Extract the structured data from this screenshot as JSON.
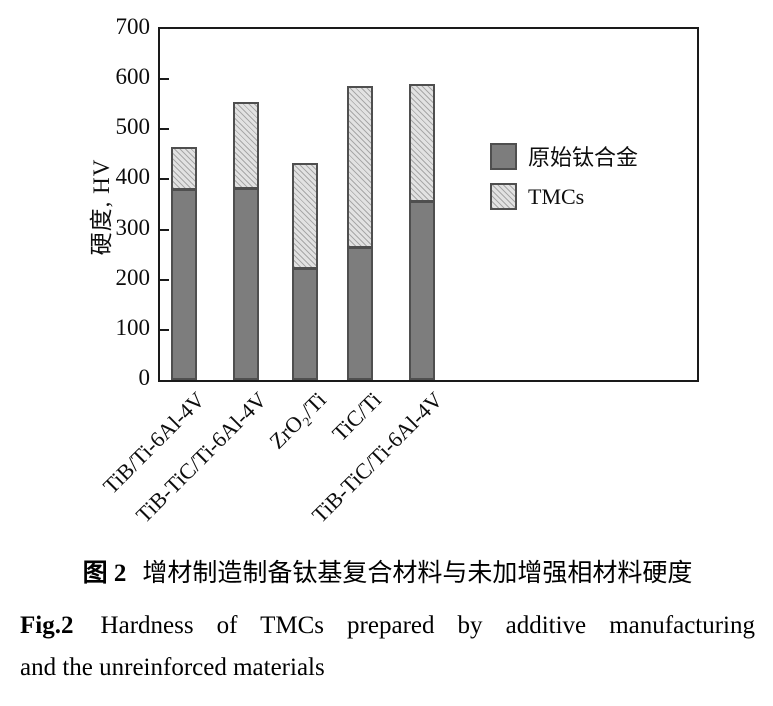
{
  "figure": {
    "y_axis": {
      "title": "硬度, HV",
      "tick_step": 100
    },
    "legend": {
      "items": [
        {
          "label": "原始钛合金",
          "swatch": "dark"
        },
        {
          "label": "TMCs",
          "swatch": "hatch"
        }
      ]
    },
    "colors": {
      "dark_fill": "#7d7d7d",
      "hatch_fill": "#e2e2e2",
      "hatch_line": "#a8a8a8",
      "bar_border": "#4f4f4f",
      "axis": "#1a1a1a"
    }
  },
  "chart_data": {
    "type": "bar",
    "stacked": true,
    "title": "",
    "xlabel": "",
    "ylabel": "硬度, HV",
    "ylim": [
      0,
      700
    ],
    "yticks": [
      0,
      100,
      200,
      300,
      400,
      500,
      600,
      700
    ],
    "grid": false,
    "legend_position": "inside-right",
    "categories": [
      "TiB/Ti-6Al-4V",
      "TiB-TiC/Ti-6Al-4V",
      "ZrO₂/Ti",
      "TiC/Ti",
      "TiB-TiC/Ti-6Al-4V"
    ],
    "series": [
      {
        "name": "原始钛合金",
        "role": "lower-segment (unreinforced alloy hardness, HV)",
        "values": [
          380,
          382,
          223,
          265,
          358
        ]
      },
      {
        "name": "TMCs",
        "role": "bar-top (TMC total hardness, HV)",
        "values": [
          465,
          555,
          433,
          587,
          590
        ]
      }
    ]
  },
  "caption": {
    "line1_prefix": "图 2",
    "line1_text": "增材制造制备钛基复合材料与未加增强相材料硬度",
    "line2_prefix": "Fig.2",
    "line2_text": "Hardness of TMCs prepared by additive manufacturing",
    "line3": "and the unreinforced materials"
  }
}
